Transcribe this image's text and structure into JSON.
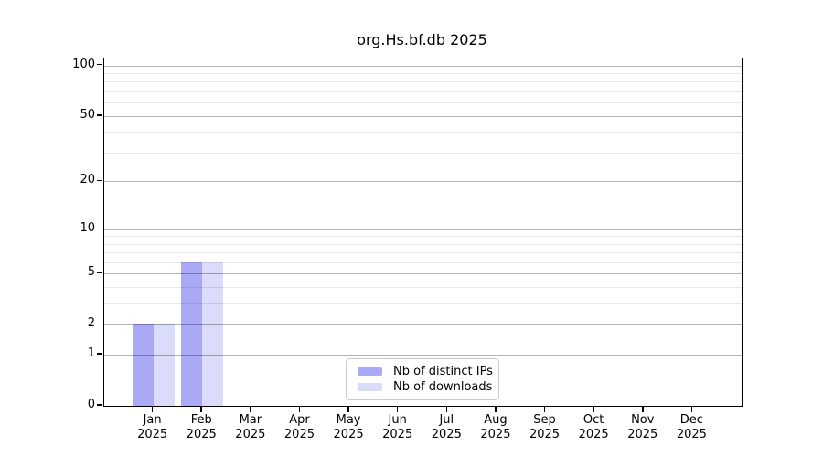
{
  "chart_data": {
    "type": "bar",
    "title": "org.Hs.bf.db 2025",
    "categories": [
      "Jan",
      "Feb",
      "Mar",
      "Apr",
      "May",
      "Jun",
      "Jul",
      "Aug",
      "Sep",
      "Oct",
      "Nov",
      "Dec"
    ],
    "category_year": "2025",
    "series": [
      {
        "name": "Nb of distinct IPs",
        "color": "#a9a9f7",
        "values": [
          2,
          6,
          0,
          0,
          0,
          0,
          0,
          0,
          0,
          0,
          0,
          0
        ]
      },
      {
        "name": "Nb of downloads",
        "color": "#dbdbfa",
        "values": [
          2,
          6,
          0,
          0,
          0,
          0,
          0,
          0,
          0,
          0,
          0,
          0
        ]
      }
    ],
    "y_scale": "log1p",
    "y_tick_labels": [
      100,
      50,
      20,
      10,
      5,
      2,
      1,
      0
    ],
    "y_minor_gridlines": [
      3,
      4,
      6,
      7,
      8,
      9,
      30,
      40,
      60,
      70,
      80,
      90
    ],
    "ylim": [
      0,
      110
    ],
    "xlabel": "",
    "ylabel": "",
    "grid": "horizontal",
    "legend_position": "lower center inside",
    "colors": {
      "major_grid": "rgba(0,0,0,0.30)",
      "minor_grid": "rgba(0,0,0,0.09)",
      "axis": "#000000",
      "background": "#ffffff"
    }
  }
}
